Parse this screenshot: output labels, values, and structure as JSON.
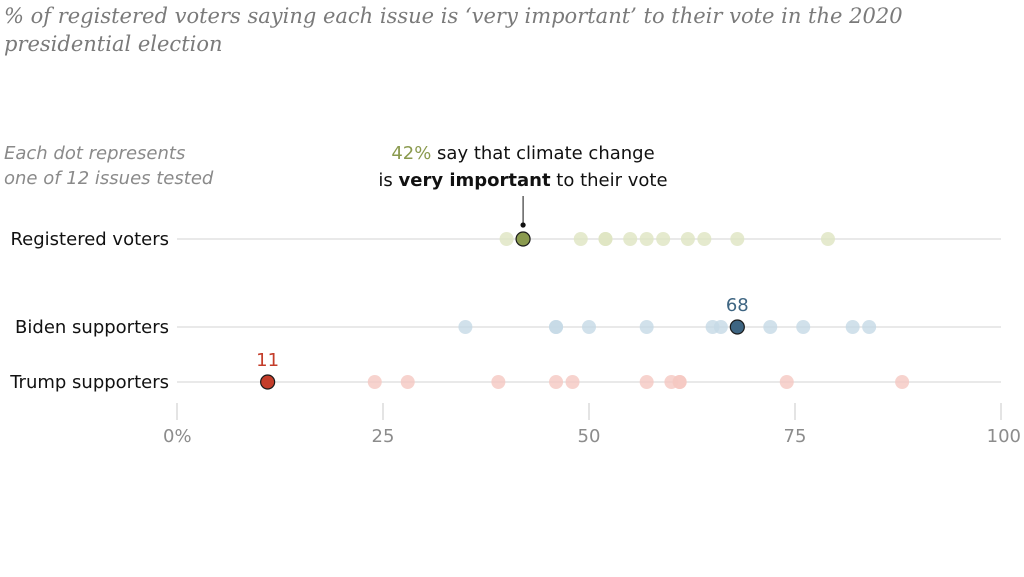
{
  "chart_data": {
    "type": "scatter",
    "title": "% of registered voters saying each issue is ‘very important’ to their vote in the 2020 presidential election",
    "note_lines": [
      "Each dot represents",
      "one of 12 issues tested"
    ],
    "xlim": [
      0,
      100
    ],
    "ticks": [
      {
        "value": 0,
        "label": "0%"
      },
      {
        "value": 25,
        "label": "25"
      },
      {
        "value": 50,
        "label": "50"
      },
      {
        "value": 75,
        "label": "75"
      },
      {
        "value": 100,
        "label": "100"
      }
    ],
    "grid": false,
    "series": [
      {
        "name": "Registered voters",
        "light_color": "#dfe5c2",
        "highlight_color": "#8a9a4e",
        "values": [
          40,
          42,
          49,
          52,
          52,
          55,
          57,
          59,
          62,
          64,
          68,
          79
        ],
        "highlight_value": 42
      },
      {
        "name": "Biden supporters",
        "light_color": "#c6d9e6",
        "highlight_color": "#3e6582",
        "values": [
          35,
          46,
          46,
          50,
          57,
          65,
          66,
          68,
          72,
          76,
          82,
          84
        ],
        "highlight_value": 68,
        "highlight_label": "68"
      },
      {
        "name": "Trump supporters",
        "light_color": "#f5c8c2",
        "highlight_color": "#c43d2a",
        "values": [
          11,
          24,
          28,
          39,
          46,
          48,
          57,
          60,
          61,
          61,
          74,
          88
        ],
        "highlight_value": 11,
        "highlight_label": "11"
      }
    ],
    "annotation": {
      "value_text": "42%",
      "line1_rest": " say that climate change",
      "line2_pre": "is ",
      "line2_bold": "very important",
      "line2_post": " to their vote",
      "value_color": "#8a9a4e"
    }
  }
}
